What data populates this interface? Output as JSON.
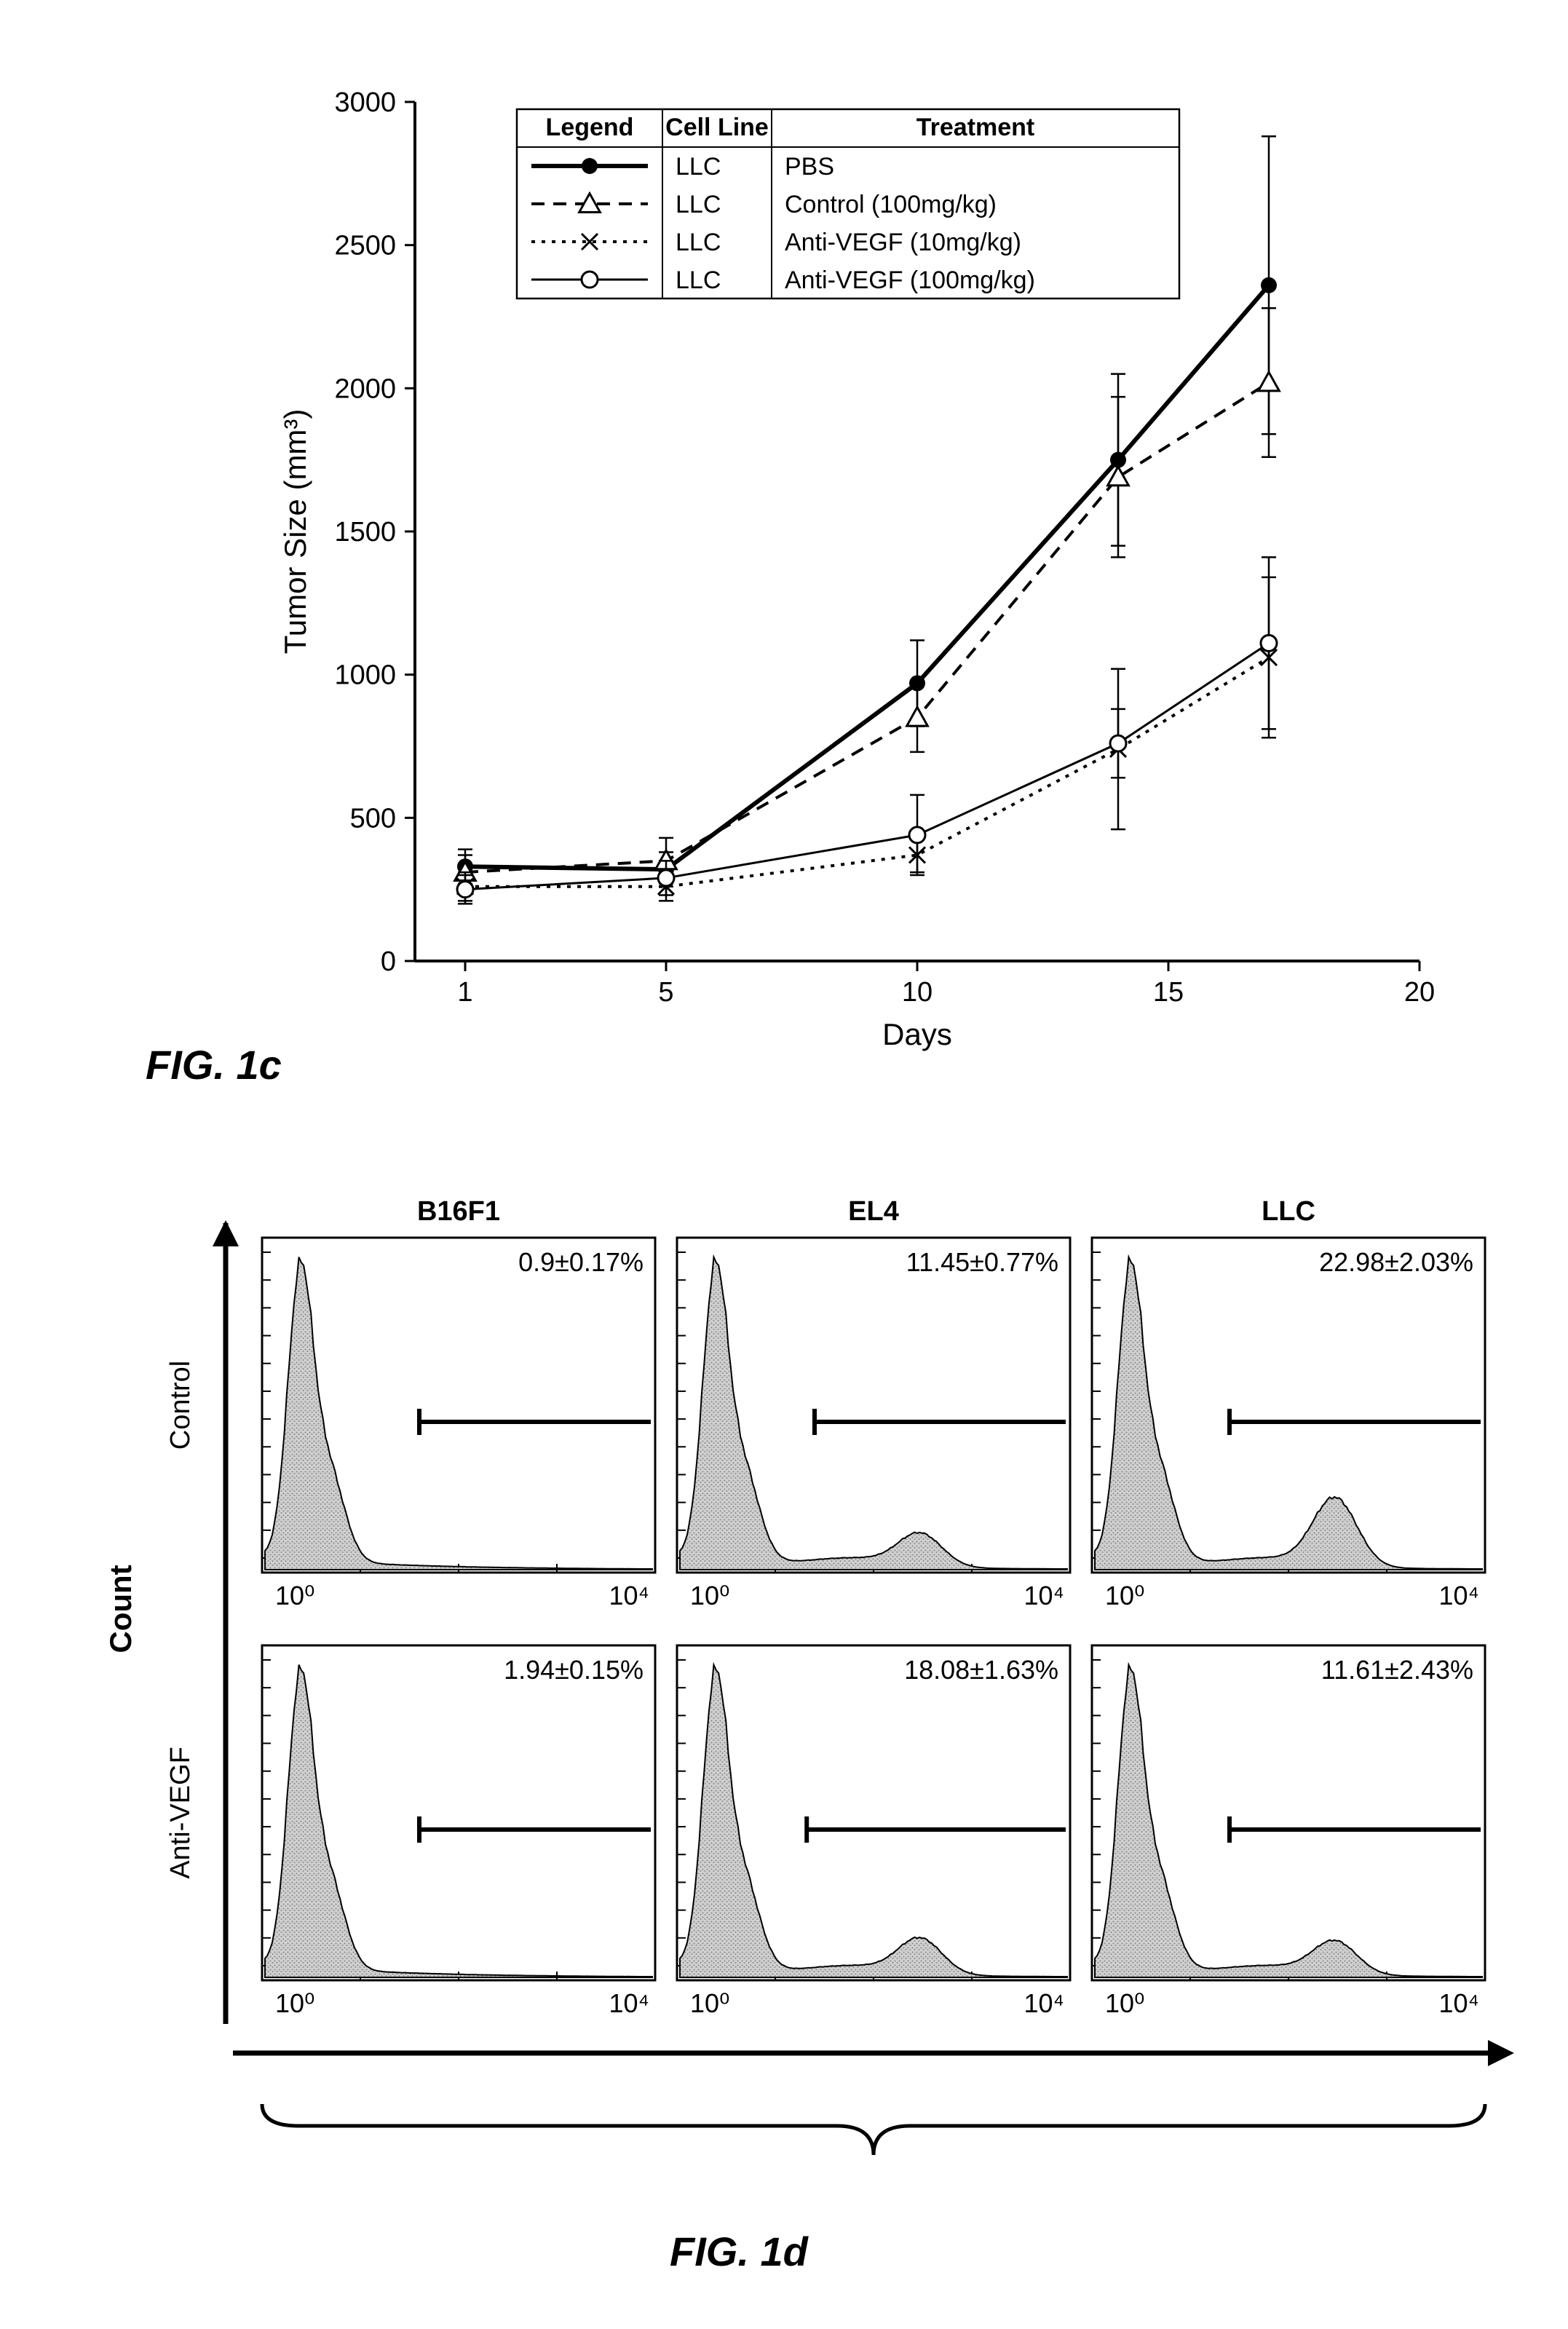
{
  "fig1c": {
    "label": "FIG. 1c",
    "label_fontsize": 56,
    "chart": {
      "type": "line",
      "xlabel": "Days",
      "ylabel": "Tumor Size (mm³)",
      "axis_label_fontsize": 42,
      "tick_fontsize": 38,
      "xlim": [
        0,
        20
      ],
      "ylim": [
        0,
        3000
      ],
      "xticks": [
        1,
        5,
        10,
        15,
        20
      ],
      "yticks": [
        0,
        500,
        1000,
        1500,
        2000,
        2500,
        3000
      ],
      "line_color": "#000000",
      "bg_color": "#ffffff",
      "legend": {
        "headers": [
          "Legend",
          "Cell Line",
          "Treatment"
        ],
        "header_fontsize": 34,
        "entry_fontsize": 34,
        "rows": [
          {
            "marker": "filled-circle",
            "line": "solid",
            "cell_line": "LLC",
            "treatment": "PBS"
          },
          {
            "marker": "open-triangle",
            "line": "dashed",
            "cell_line": "LLC",
            "treatment": "Control (100mg/kg)"
          },
          {
            "marker": "x",
            "line": "dotted",
            "cell_line": "LLC",
            "treatment": "Anti-VEGF (10mg/kg)"
          },
          {
            "marker": "open-circle",
            "line": "solid-thin",
            "cell_line": "LLC",
            "treatment": "Anti-VEGF (100mg/kg)"
          }
        ]
      },
      "series": [
        {
          "name": "PBS",
          "marker": "filled-circle",
          "line": "solid",
          "x": [
            1,
            5,
            10,
            14,
            17
          ],
          "y": [
            330,
            320,
            970,
            1750,
            2360
          ],
          "err": [
            60,
            60,
            150,
            300,
            520
          ]
        },
        {
          "name": "Control",
          "marker": "open-triangle",
          "line": "dashed",
          "x": [
            1,
            5,
            10,
            14,
            17
          ],
          "y": [
            310,
            350,
            850,
            1690,
            2020
          ],
          "err": [
            60,
            80,
            120,
            280,
            260
          ]
        },
        {
          "name": "Anti-VEGF 10",
          "marker": "x",
          "line": "dotted",
          "x": [
            1,
            5,
            10,
            14,
            17
          ],
          "y": [
            260,
            260,
            370,
            740,
            1060
          ],
          "err": [
            50,
            50,
            60,
            280,
            280
          ]
        },
        {
          "name": "Anti-VEGF 100",
          "marker": "open-circle",
          "line": "solid-thin",
          "x": [
            1,
            5,
            10,
            14,
            17
          ],
          "y": [
            250,
            290,
            440,
            760,
            1110
          ],
          "err": [
            50,
            60,
            140,
            120,
            300
          ]
        }
      ]
    }
  },
  "fig1d": {
    "label": "FIG. 1d",
    "label_fontsize": 56,
    "chart": {
      "type": "histogram-grid",
      "y_axis_label": "Count",
      "y_axis_label_fontsize": 42,
      "row_labels": [
        "Control",
        "Anti-VEGF"
      ],
      "row_label_fontsize": 38,
      "col_labels": [
        "B16F1",
        "EL4",
        "LLC"
      ],
      "col_label_fontsize": 38,
      "x_tick_labels": [
        "10⁰",
        "10⁴"
      ],
      "x_tick_fontsize": 36,
      "fill_color": "#b8b8b8",
      "stroke_color": "#000000",
      "bg_color": "#ffffff",
      "panels": [
        [
          {
            "percent": "0.9±0.17%",
            "gate_start": 0.4,
            "second_peak": false,
            "second_peak_height": 0
          },
          {
            "percent": "11.45±0.77%",
            "gate_start": 0.35,
            "second_peak": true,
            "second_peak_height": 0.12
          },
          {
            "percent": "22.98±2.03%",
            "gate_start": 0.35,
            "second_peak": true,
            "second_peak_height": 0.25
          }
        ],
        [
          {
            "percent": "1.94±0.15%",
            "gate_start": 0.4,
            "second_peak": false,
            "second_peak_height": 0
          },
          {
            "percent": "18.08±1.63%",
            "gate_start": 0.33,
            "second_peak": true,
            "second_peak_height": 0.13
          },
          {
            "percent": "11.61±2.43%",
            "gate_start": 0.35,
            "second_peak": true,
            "second_peak_height": 0.12
          }
        ]
      ],
      "percent_fontsize": 36
    }
  }
}
